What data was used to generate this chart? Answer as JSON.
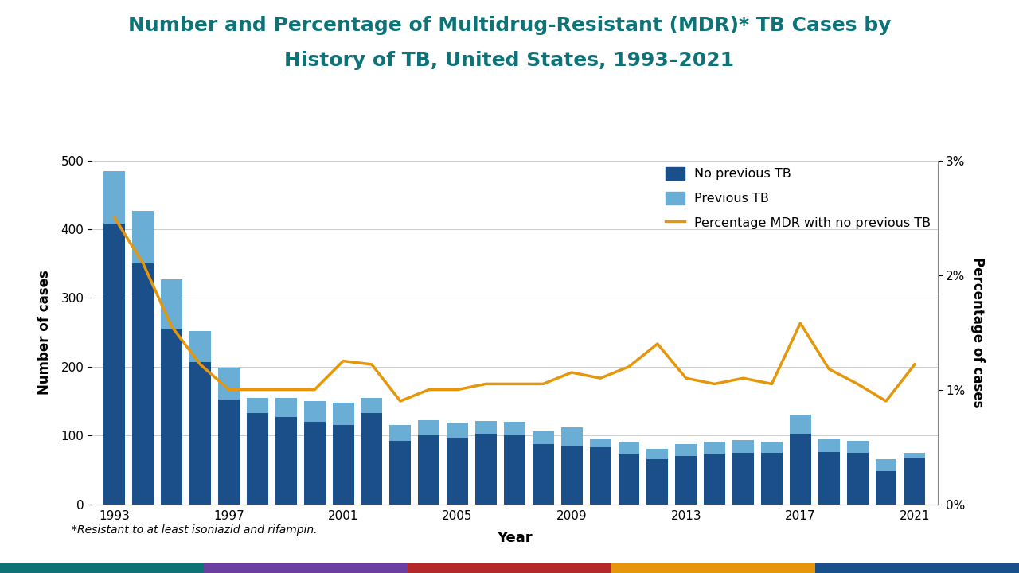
{
  "years": [
    1993,
    1994,
    1995,
    1996,
    1997,
    1998,
    1999,
    2000,
    2001,
    2002,
    2003,
    2004,
    2005,
    2006,
    2007,
    2008,
    2009,
    2010,
    2011,
    2012,
    2013,
    2014,
    2015,
    2016,
    2017,
    2018,
    2019,
    2020,
    2021
  ],
  "no_prev_tb": [
    408,
    350,
    255,
    207,
    152,
    133,
    127,
    120,
    115,
    133,
    92,
    100,
    97,
    103,
    100,
    88,
    85,
    83,
    73,
    65,
    70,
    73,
    75,
    75,
    102,
    76,
    75,
    48,
    67
  ],
  "prev_tb": [
    76,
    77,
    72,
    45,
    47,
    22,
    28,
    30,
    33,
    22,
    23,
    22,
    22,
    18,
    20,
    18,
    27,
    13,
    18,
    15,
    17,
    18,
    18,
    16,
    28,
    18,
    17,
    17,
    8
  ],
  "pct_mdr_no_prev": [
    2.5,
    2.1,
    1.55,
    1.22,
    1.0,
    1.0,
    1.0,
    1.0,
    1.25,
    1.22,
    0.9,
    1.0,
    1.0,
    1.05,
    1.05,
    1.05,
    1.15,
    1.1,
    1.2,
    1.4,
    1.1,
    1.05,
    1.1,
    1.05,
    1.58,
    1.18,
    1.05,
    0.9,
    1.22
  ],
  "ylabel_left": "Number of cases",
  "ylabel_right": "Percentage of cases",
  "xlabel": "Year",
  "color_no_prev": "#1B4F8A",
  "color_prev": "#6AAED6",
  "color_line": "#E5960A",
  "title_color": "#0D7377",
  "footnote": "*Resistant to at least isoniazid and rifampin.",
  "ylim_left": [
    0,
    500
  ],
  "ylim_right": [
    0,
    3
  ],
  "yticks_left": [
    0,
    100,
    200,
    300,
    400,
    500
  ],
  "yticks_right": [
    0,
    1,
    2,
    3
  ],
  "ytick_labels_right": [
    "0%",
    "1%",
    "2%",
    "3%"
  ],
  "xticks": [
    1993,
    1997,
    2001,
    2005,
    2009,
    2013,
    2017,
    2021
  ],
  "strip_colors": [
    "#0D7377",
    "#6B3FA0",
    "#B5282A",
    "#E5960A",
    "#1B4F8A"
  ]
}
